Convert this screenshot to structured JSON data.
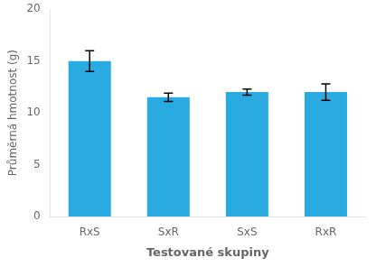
{
  "chart_data": {
    "type": "bar",
    "categories": [
      "RxS",
      "SxR",
      "SxS",
      "RxR"
    ],
    "values": [
      15.0,
      11.5,
      12.0,
      12.0
    ],
    "errors": [
      1.0,
      0.4,
      0.3,
      0.8
    ],
    "color": "#29ABE2",
    "xlabel": "Testované skupiny",
    "ylabel": "Průměrná hmotnost (g)",
    "ylim": [
      0,
      20
    ],
    "yticks": [
      0,
      5,
      10,
      15,
      20
    ],
    "grid": false
  }
}
